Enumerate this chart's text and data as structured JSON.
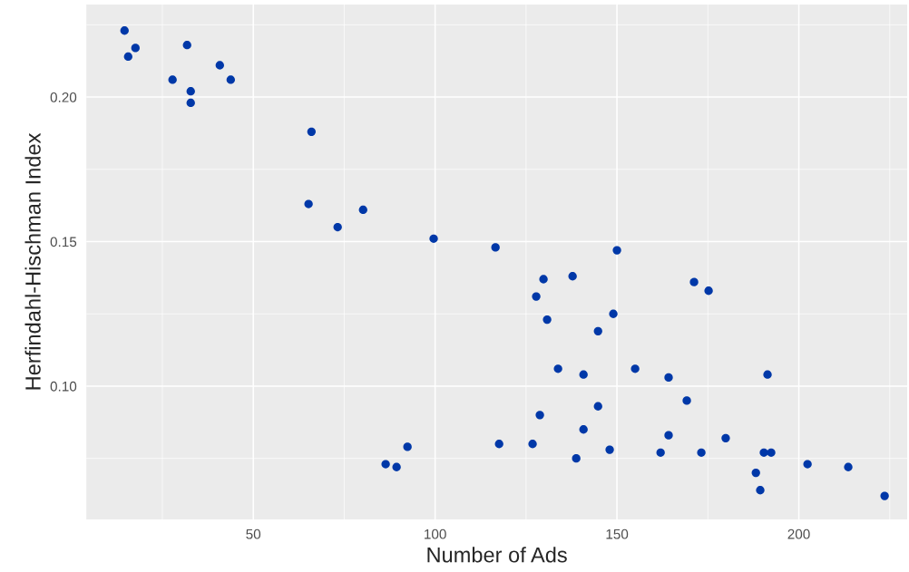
{
  "chart_data": {
    "type": "scatter",
    "xlabel": "Number of Ads",
    "ylabel": "Herfindahl-Hischman Index",
    "x": [
      14.6,
      15.6,
      17.6,
      27.8,
      31.8,
      32.8,
      32.8,
      40.8,
      43.8,
      66.0,
      65.2,
      73.2,
      80.2,
      99.6,
      116.6,
      150.0,
      129.8,
      137.8,
      127.8,
      130.8,
      171.2,
      175.2,
      149.0,
      144.8,
      133.8,
      140.8,
      155.0,
      164.2,
      191.4,
      169.2,
      144.8,
      128.8,
      140.8,
      164.2,
      179.9,
      117.6,
      126.8,
      148.0,
      162.0,
      173.2,
      138.8,
      190.4,
      192.4,
      188.2,
      189.4,
      202.4,
      213.6,
      223.6,
      92.4,
      86.4,
      89.4
    ],
    "series": [
      {
        "color": "#0038a8",
        "values": [
          0.223,
          0.214,
          0.217,
          0.206,
          0.218,
          0.202,
          0.198,
          0.211,
          0.206,
          0.188,
          0.163,
          0.155,
          0.161,
          0.151,
          0.148,
          0.147,
          0.137,
          0.138,
          0.131,
          0.123,
          0.136,
          0.133,
          0.125,
          0.119,
          0.106,
          0.104,
          0.106,
          0.103,
          0.104,
          0.095,
          0.093,
          0.09,
          0.085,
          0.083,
          0.082,
          0.08,
          0.08,
          0.078,
          0.077,
          0.077,
          0.075,
          0.077,
          0.077,
          0.07,
          0.064,
          0.073,
          0.072,
          0.062,
          0.079,
          0.073,
          0.072
        ]
      }
    ],
    "xlim": [
      4.1,
      229.8
    ],
    "ylim": [
      0.0539,
      0.232
    ],
    "xticks": [
      50,
      100,
      150,
      200
    ],
    "yticks": [
      {
        "value": 0.1,
        "label": "0.10"
      },
      {
        "value": 0.15,
        "label": "0.15"
      },
      {
        "value": 0.2,
        "label": "0.20"
      }
    ],
    "grid": true,
    "marker": "circle"
  }
}
